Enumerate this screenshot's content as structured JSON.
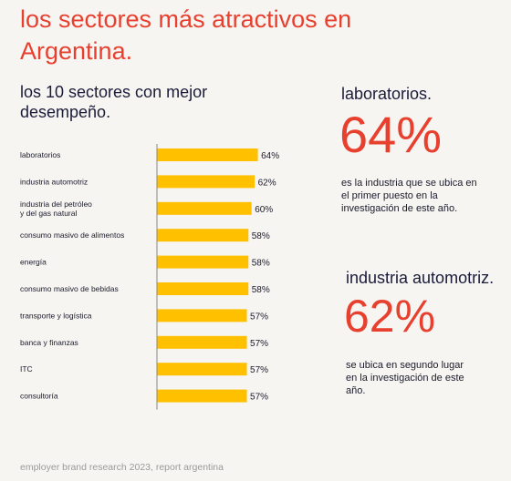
{
  "header": {
    "title": "los sectores más atractivos en Argentina.",
    "subtitle": "los 10 sectores con mejor desempeño."
  },
  "chart_data": {
    "type": "bar",
    "orientation": "horizontal",
    "title": "los 10 sectores con mejor desempeño.",
    "categories": [
      [
        "laboratorios"
      ],
      [
        "industria automotriz"
      ],
      [
        "industria del petróleo",
        "y del gas natural"
      ],
      [
        "consumo masivo de alimentos"
      ],
      [
        "energía"
      ],
      [
        "consumo masivo de bebidas"
      ],
      [
        "transporte y logística"
      ],
      [
        "banca y finanzas"
      ],
      [
        "ITC"
      ],
      [
        "consultoría"
      ]
    ],
    "values": [
      64,
      62,
      60,
      58,
      58,
      58,
      57,
      57,
      57,
      57
    ],
    "value_labels": [
      "64%",
      "62%",
      "60%",
      "58%",
      "58%",
      "58%",
      "57%",
      "57%",
      "57%",
      "57%"
    ],
    "unit": "%",
    "bar_color": "#ffc000",
    "axis_color": "#888888",
    "xlim": [
      0,
      100
    ],
    "grid": false,
    "legend": "none"
  },
  "highlights": [
    {
      "name": "laboratorios.",
      "percent": "64%",
      "description": "es la industria que se ubica en el primer puesto en la investigación de este año."
    },
    {
      "name": "industria automotriz.",
      "percent": "62%",
      "description": "se ubica en segundo lugar en la investigación de este año."
    }
  ],
  "footer": {
    "text": "employer brand research 2023, report argentina"
  },
  "colors": {
    "accent": "#e8402f",
    "bar": "#ffc000",
    "background": "#f6f5f2",
    "footer": "#9a9a9a"
  }
}
